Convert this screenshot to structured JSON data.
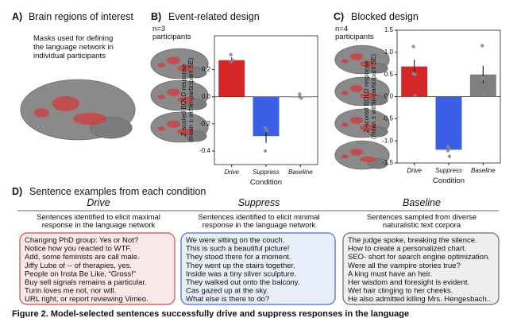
{
  "panel_a": {
    "label": "A)",
    "title": "Brain regions of interest",
    "text": [
      "Masks used for defining",
      "the language network in",
      "individual participants"
    ]
  },
  "chart_data": [
    {
      "type": "bar",
      "panel_label": "B)",
      "title": "Event-related design",
      "subtitle": [
        "n=3",
        "participants"
      ],
      "categories": [
        "Drive",
        "Suppress",
        "Baseline"
      ],
      "values": [
        0.27,
        -0.29,
        0.0
      ],
      "errors": [
        0.02,
        0.05,
        0.01
      ],
      "points": [
        [
          0.31,
          0.27,
          0.26
        ],
        [
          -0.23,
          -0.25,
          -0.4
        ],
        [
          0.02,
          -0.01,
          0.0
        ]
      ],
      "colors": [
        "#d62728",
        "#3b5ee6",
        "#7f7f7f"
      ],
      "ylim": [
        -0.5,
        0.45
      ],
      "yticks": [
        -0.4,
        -0.2,
        {
          "value": 0,
          "label": "0.0"
        },
        0.2
      ],
      "y_label": [
        "Z-scored BOLD response",
        "(mean ± within-participant SE)"
      ],
      "x_label": "Condition"
    },
    {
      "type": "bar",
      "panel_label": "C)",
      "title": "Blocked design",
      "subtitle": [
        "n=4",
        "participants"
      ],
      "categories": [
        "Drive",
        "Suppress",
        "Baseline"
      ],
      "values": [
        0.68,
        -1.2,
        0.5
      ],
      "errors": [
        0.15,
        0.04,
        0.2
      ],
      "points": [
        [
          1.13,
          0.5,
          0.52,
          0.02
        ],
        [
          -1.13,
          -1.18,
          -1.22,
          -1.35
        ],
        [
          1.15,
          0.43,
          0.4,
          0.05
        ]
      ],
      "colors": [
        "#d62728",
        "#3b5ee6",
        "#7f7f7f"
      ],
      "ylim": [
        -1.5,
        1.5
      ],
      "yticks": [
        -1.5,
        {
          "value": -1,
          "label": "-1.0"
        },
        -0.5,
        {
          "value": 0,
          "label": "0.0"
        },
        0.5,
        {
          "value": 1,
          "label": "1.0"
        },
        1.5
      ],
      "y_label": [
        "Z-scored BOLD response",
        "(mean ± within-participant SE)"
      ],
      "x_label": "Condition"
    }
  ],
  "panel_d": {
    "label": "D)",
    "title": "Sentence examples from each condition",
    "columns": [
      {
        "name": "Drive",
        "description": [
          "Sentences identified to elicit maximal",
          "response in the language network"
        ],
        "sentences": [
          "Changing PhD group: Yes or Not?",
          "Notice how you reacted to WTF.",
          "Add, some feminists are call male.",
          "Jiffy Lube of -- of therapies, yes.",
          "People on Insta Be Like, “Gross!”",
          "Buy sell signals remains a particular.",
          "Turin loves me not, nor will.",
          "URL right, or report reviewing Vimeo."
        ]
      },
      {
        "name": "Suppress",
        "description": [
          "Sentences identified to elicit minimal",
          "response in the language network"
        ],
        "sentences": [
          "We were sitting on the couch.",
          "This is such a beautiful picture!",
          "They stood there for a moment.",
          "They went up the stairs together.",
          "Inside was a tiny silver sculpture.",
          "They walked out onto the balcony.",
          "Cas gazed up at the sky.",
          "What else is there to do?"
        ]
      },
      {
        "name": "Baseline",
        "description": [
          "Sentences sampled from diverse",
          "naturalistic text corpora"
        ],
        "sentences": [
          "The judge spoke, breaking the silence.",
          "How to create a personalized chart.",
          "SEO- short for search engine optimization.",
          "Were all the vampire stories true?",
          "A king must have an heir.",
          "Her wisdom and foresight is evident.",
          "Wet hair clinging to her cheeks.",
          "He also admitted killing Mrs. Hengesbach.."
        ]
      }
    ]
  },
  "caption": "Figure 2. Model-selected sentences successfully drive and suppress responses in the language"
}
